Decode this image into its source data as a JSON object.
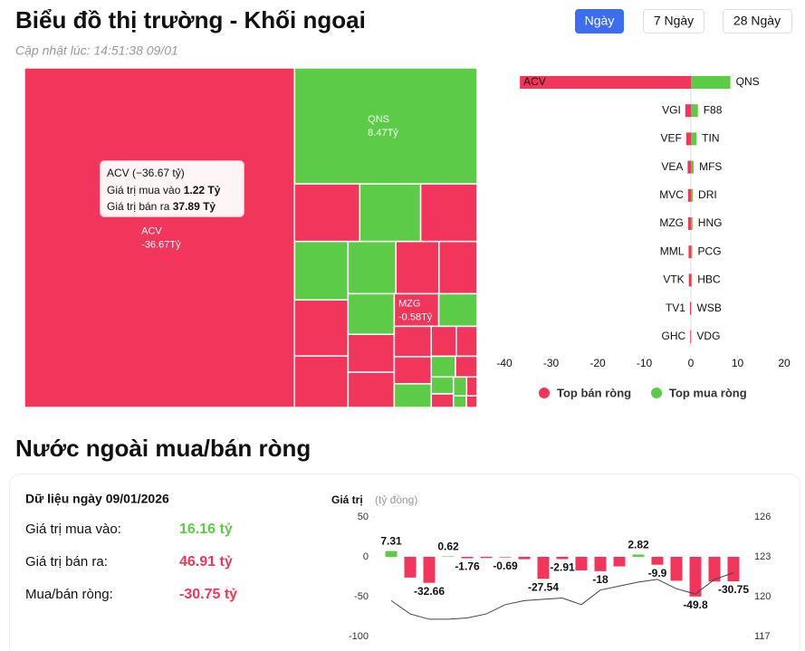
{
  "header": {
    "title": "Biểu đồ thị trường - Khối ngoại",
    "updated": "Cập nhật lúc: 14:51:38 09/01",
    "tabs": [
      "Ngày",
      "7 Ngày",
      "28 Ngày"
    ]
  },
  "section_title": "Nước ngoài mua/bán ròng",
  "summary": {
    "title": "Dữ liệu ngày 09/01/2026",
    "rows": [
      {
        "label": "Giá trị mua vào:",
        "value": "16.16 tỷ",
        "color": "#5ccc48"
      },
      {
        "label": "Giá trị bán ra:",
        "value": "46.91 tỷ",
        "color": "#f2365b"
      },
      {
        "label": "Mua/bán ròng:",
        "value": "-30.75 tỷ",
        "color": "#f2365b"
      }
    ]
  },
  "chart_data": [
    {
      "type": "treemap",
      "categories": [
        "ACV",
        "QNS",
        null,
        null,
        null,
        null,
        null,
        null,
        null,
        null,
        null,
        null,
        null,
        null,
        "MZG",
        null,
        null,
        null,
        null,
        null,
        null,
        null,
        null,
        null,
        null,
        null,
        null,
        null,
        null
      ],
      "values": [
        -36.67,
        8.47,
        -1.5,
        1.4,
        -1.3,
        1.25,
        -1.2,
        -1.1,
        1.0,
        -0.9,
        -0.8,
        0.75,
        -0.7,
        -0.65,
        -0.58,
        0.5,
        -0.45,
        -0.4,
        0.35,
        -0.3,
        -0.25,
        0.2,
        -0.18,
        0.15,
        -0.12,
        0.1,
        -0.08,
        0.06,
        -0.05
      ],
      "value_labels": [
        "-36.67Tỷ",
        "8.47Tỷ",
        null,
        null,
        null,
        null,
        null,
        null,
        null,
        null,
        null,
        null,
        null,
        null,
        "-0.58Tỷ",
        null,
        null,
        null,
        null,
        null,
        null,
        null,
        null,
        null,
        null,
        null,
        null,
        null,
        null
      ],
      "color_positive": "#5ccc48",
      "color_negative": "#f2365b",
      "tooltip": {
        "title": "ACV (−36.67 tỷ)",
        "rows": [
          {
            "label": "Giá trị mua vào",
            "value": "1.22 Tỷ"
          },
          {
            "label": "Giá trị bán ra",
            "value": "37.89 Tỷ"
          }
        ]
      }
    },
    {
      "type": "diverging_bar",
      "series": [
        {
          "name": "Top bán ròng",
          "color": "#f2365b",
          "categories": [
            "ACV",
            "VGI",
            "VEF",
            "VEA",
            "MVC",
            "MZG",
            "MML",
            "VTK",
            "TV1",
            "GHC"
          ],
          "values": [
            -36.67,
            -1.2,
            -1.0,
            -0.7,
            -0.6,
            -0.58,
            -0.5,
            -0.45,
            -0.2,
            -0.15
          ]
        },
        {
          "name": "Top mua ròng",
          "color": "#5ccc48",
          "categories": [
            "QNS",
            "F88",
            "TIN",
            "MFS",
            "DRI",
            "HNG",
            "PCG",
            "HBC",
            "WSB",
            "VDG"
          ],
          "values": [
            8.47,
            1.5,
            1.2,
            0.6,
            0.4,
            0.35,
            0.3,
            0.25,
            0.1,
            0.08
          ]
        }
      ],
      "xlim": [
        -40,
        20
      ],
      "xticks": [
        -40,
        -30,
        -20,
        -10,
        0,
        10,
        20
      ]
    },
    {
      "type": "bar_line",
      "ylabel": "Giá trị",
      "yunit": "(tỷ đồng)",
      "ylim": [
        -100,
        50
      ],
      "yticks": [
        50,
        0,
        -50,
        -100
      ],
      "y2lim": [
        117,
        126
      ],
      "y2ticks": [
        126,
        123,
        120,
        117
      ],
      "series": [
        {
          "type": "bar",
          "color_positive": "#5ccc48",
          "color_negative": "#f2365b",
          "values": [
            7.31,
            -26,
            -32.66,
            0.62,
            -1.76,
            -1.5,
            -0.69,
            -3,
            -27.54,
            -2.91,
            -17,
            -18,
            -12,
            2.82,
            -9.9,
            -30,
            -49.8,
            -31,
            -30.75
          ],
          "value_labels": [
            "7.31",
            null,
            "-32.66",
            "0.62",
            "-1.76",
            null,
            "-0.69",
            null,
            "-27.54",
            "-2.91",
            null,
            "-18",
            null,
            "2.82",
            "-9.9",
            null,
            "-49.8",
            null,
            "-30.75"
          ]
        },
        {
          "type": "line",
          "axis": "y2",
          "color": "#444444",
          "values": [
            119.7,
            118.7,
            118.3,
            118.3,
            118.4,
            118.7,
            119.4,
            119.7,
            119.8,
            119.9,
            119.4,
            120.5,
            120.8,
            121.1,
            121.3,
            120.6,
            120.2,
            121.3,
            121.8
          ]
        }
      ]
    }
  ]
}
